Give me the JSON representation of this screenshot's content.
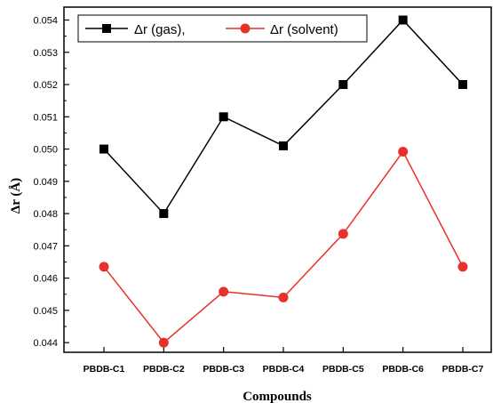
{
  "chart_data": {
    "type": "line",
    "xlabel": "Compounds",
    "ylabel": "Δr (Å)",
    "categories": [
      "PBDB-C1",
      "PBDB-C2",
      "PBDB-C3",
      "PBDB-C4",
      "PBDB-C5",
      "PBDB-C6",
      "PBDB-C7"
    ],
    "ylim": [
      0.0437,
      0.0544
    ],
    "yticks": [
      "0.044",
      "0.045",
      "0.046",
      "0.047",
      "0.048",
      "0.049",
      "0.050",
      "0.051",
      "0.052",
      "0.053",
      "0.054"
    ],
    "grid": false,
    "legend_position": "top",
    "series": [
      {
        "name": "Δr (gas),",
        "color": "#000000",
        "marker": "square",
        "values": [
          0.05,
          0.048,
          0.051,
          0.0501,
          0.052,
          0.054,
          0.052
        ]
      },
      {
        "name": "Δr (solvent)",
        "color": "#e8312a",
        "marker": "circle",
        "values": [
          0.04635,
          0.044,
          0.04558,
          0.0454,
          0.04737,
          0.04992,
          0.04635
        ]
      }
    ]
  }
}
